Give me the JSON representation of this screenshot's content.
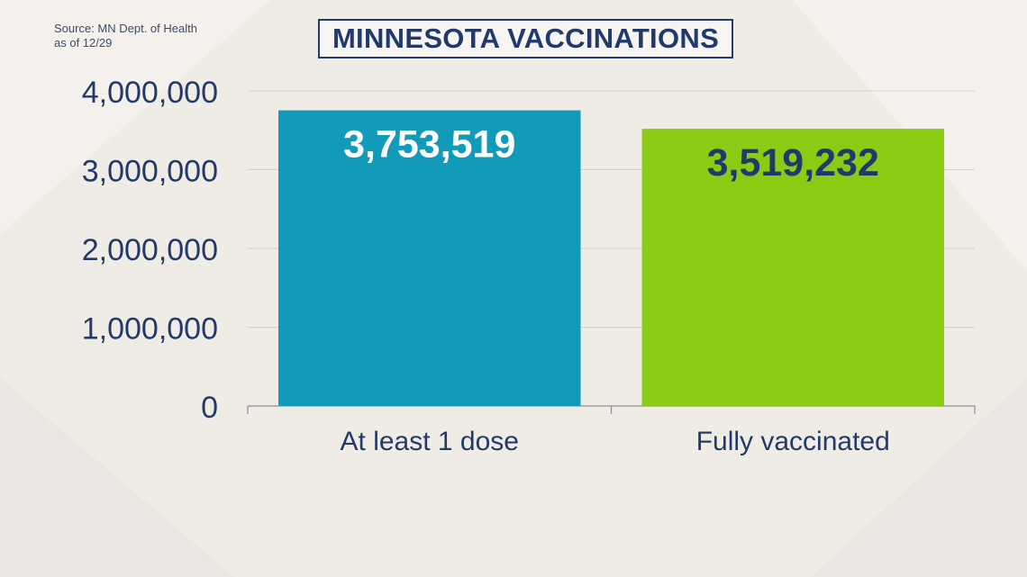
{
  "source": {
    "line1": "Source: MN Dept. of Health",
    "line2": "as of 12/29"
  },
  "title": "MINNESOTA VACCINATIONS",
  "chart_data": {
    "type": "bar",
    "categories": [
      "At least 1 dose",
      "Fully vaccinated"
    ],
    "values": [
      3753519,
      3519232
    ],
    "value_labels": [
      "3,753,519",
      "3,519,232"
    ],
    "title": "MINNESOTA VACCINATIONS",
    "xlabel": "",
    "ylabel": "",
    "ylim": [
      0,
      4000000
    ],
    "yticks": [
      0,
      1000000,
      2000000,
      3000000,
      4000000
    ],
    "ytick_labels": [
      "0",
      "1,000,000",
      "2,000,000",
      "3,000,000",
      "4,000,000"
    ],
    "grid": true,
    "legend": "none",
    "colors": [
      "#129ab9",
      "#8ccb14"
    ],
    "value_label_colors": [
      "#ffffff",
      "#223a6b"
    ],
    "text_color": "#223a6b",
    "grid_color": "#d6d2cb"
  }
}
